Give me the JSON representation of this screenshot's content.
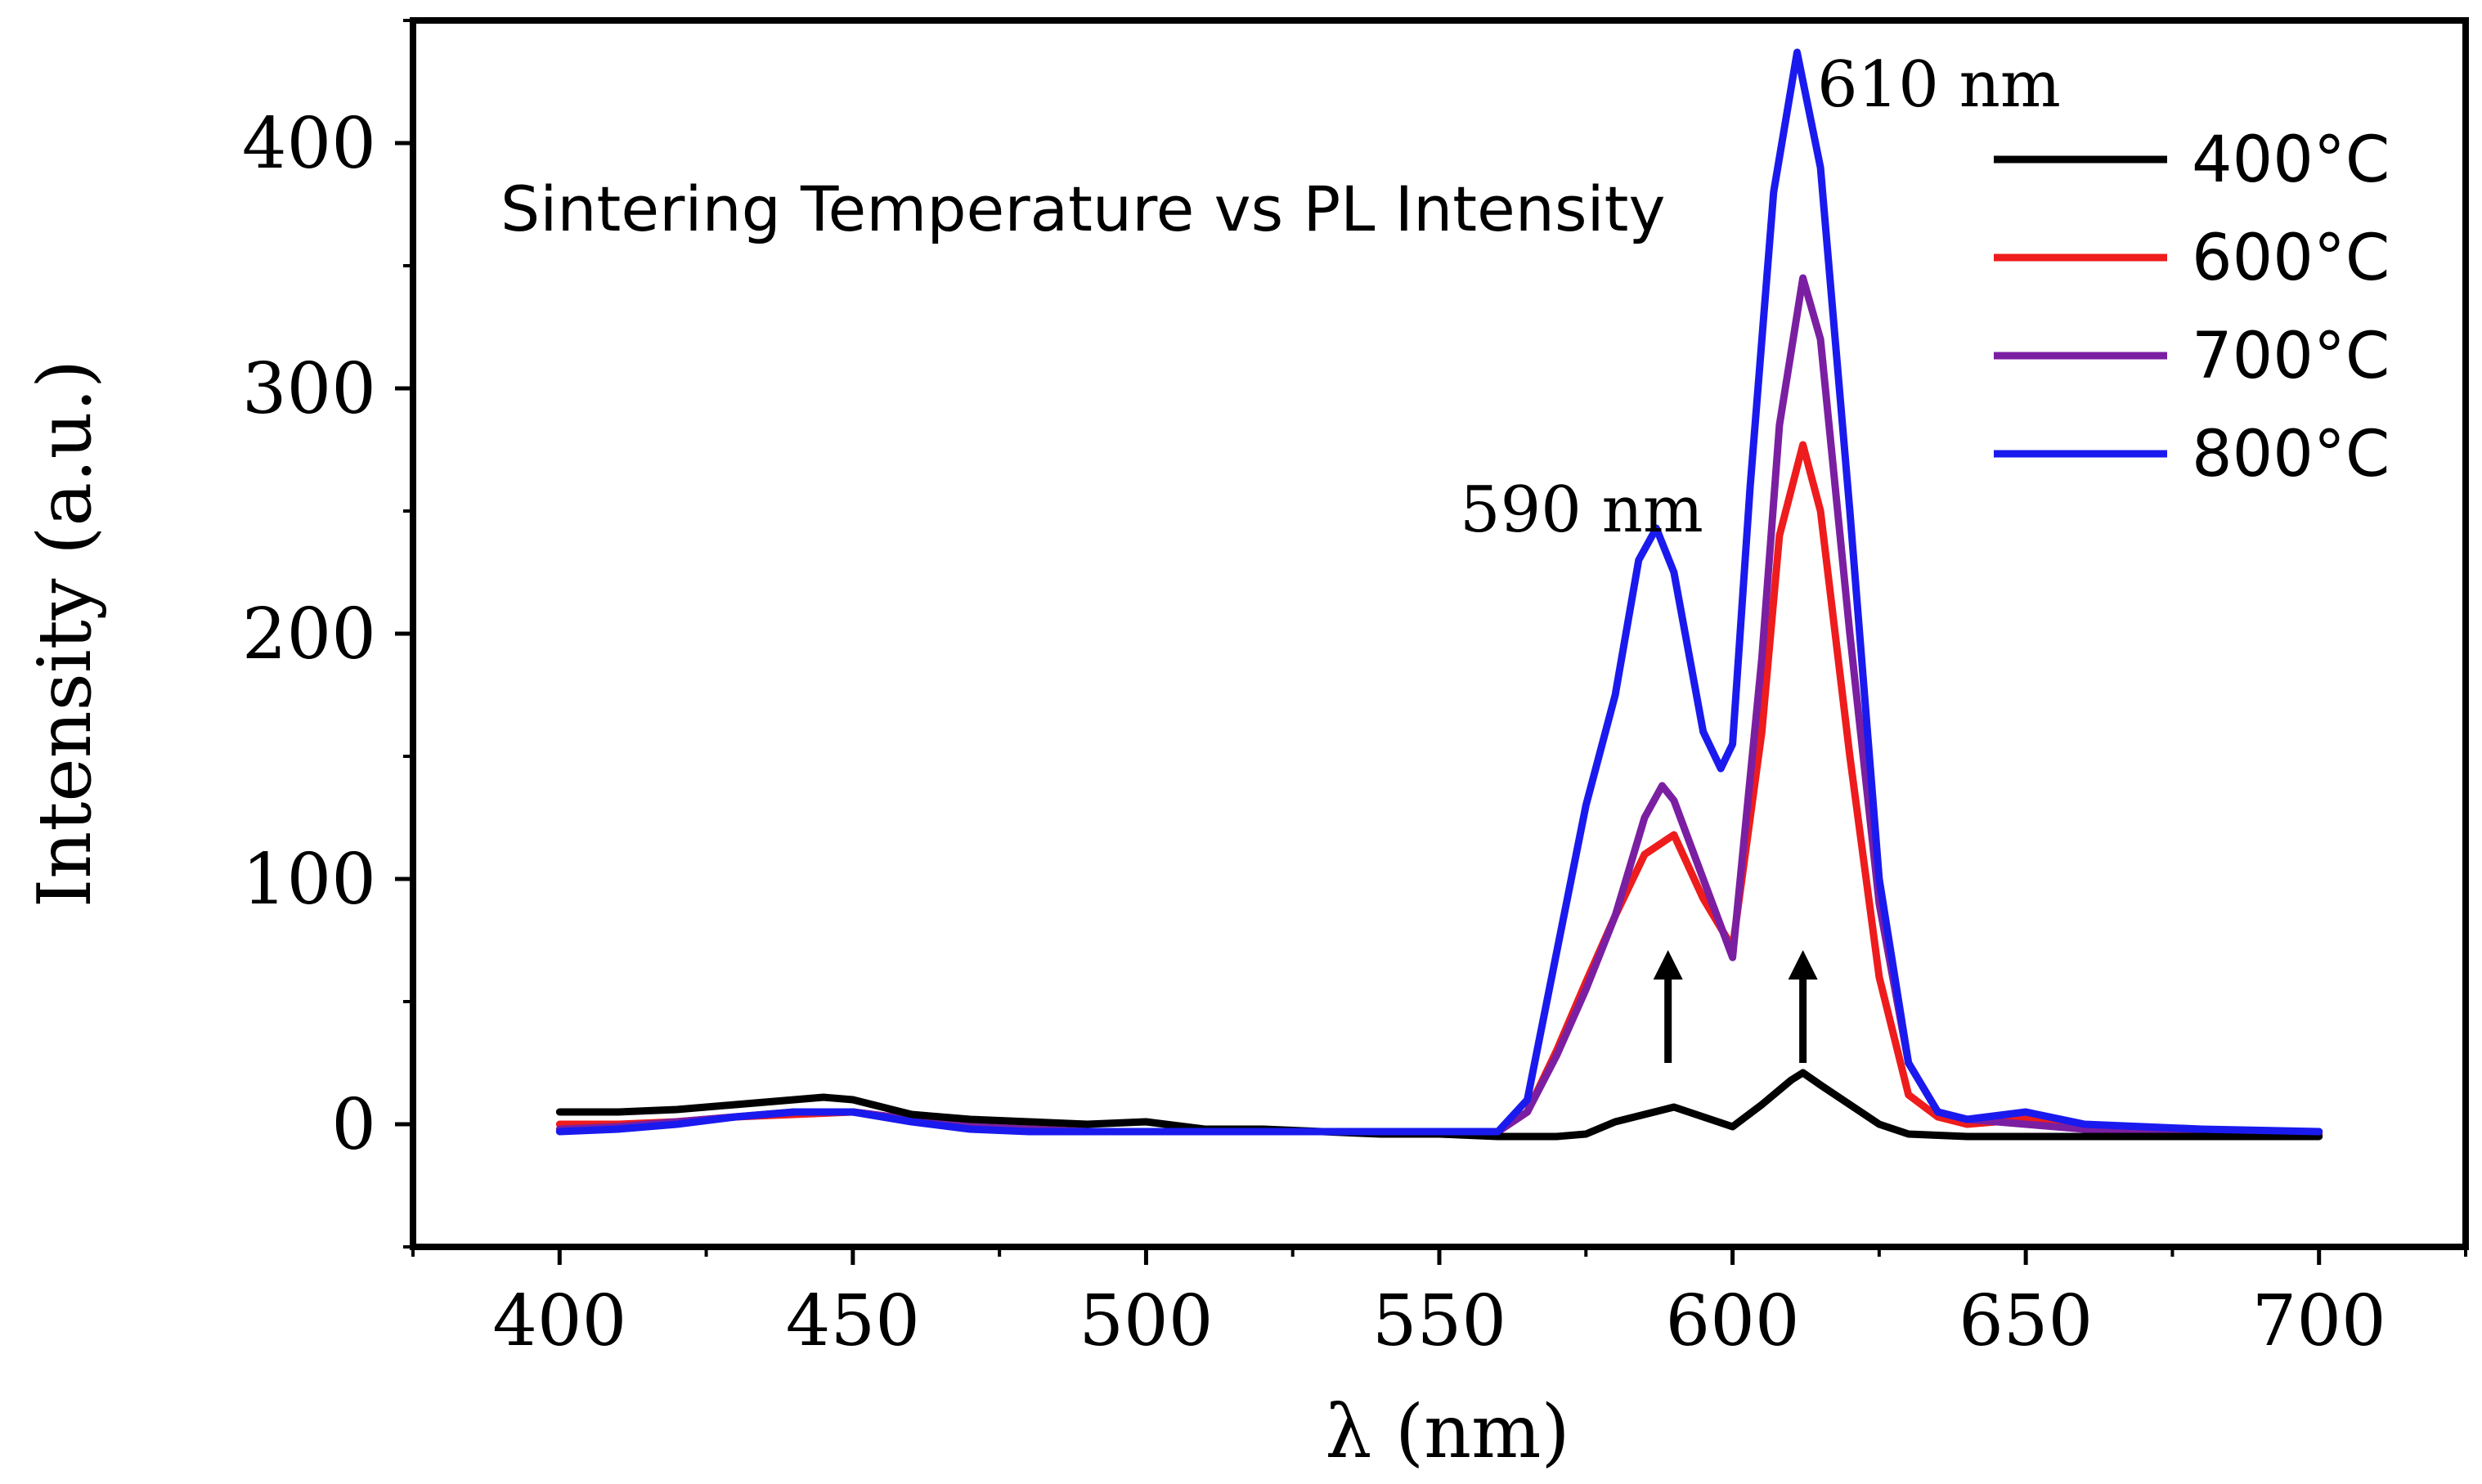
{
  "chart_data": {
    "type": "line",
    "title": "Sintering Temperature vs PL Intensity",
    "xlabel": "λ (nm)",
    "ylabel": "Intensity (a.u.)",
    "xlim": [
      375,
      725
    ],
    "ylim": [
      -50,
      450
    ],
    "xticks": [
      400,
      450,
      500,
      550,
      600,
      650,
      700
    ],
    "yticks": [
      0,
      100,
      200,
      300,
      400
    ],
    "legend_position": "top-right",
    "series": [
      {
        "name": "400°C",
        "color": "#000000",
        "x": [
          400,
          410,
          420,
          430,
          440,
          445,
          450,
          460,
          470,
          480,
          490,
          500,
          510,
          520,
          530,
          540,
          550,
          560,
          570,
          575,
          580,
          585,
          590,
          595,
          600,
          605,
          610,
          612,
          615,
          620,
          625,
          630,
          640,
          650,
          660,
          680,
          700
        ],
        "y": [
          5,
          5,
          6,
          8,
          10,
          11,
          10,
          4,
          2,
          1,
          0,
          1,
          -2,
          -2,
          -3,
          -4,
          -4,
          -5,
          -5,
          -4,
          1,
          4,
          7,
          3,
          -1,
          8,
          18,
          21,
          16,
          8,
          0,
          -4,
          -5,
          -5,
          -5,
          -5,
          -5
        ]
      },
      {
        "name": "600°C",
        "color": "#ee1c1c",
        "x": [
          400,
          410,
          420,
          430,
          440,
          450,
          460,
          470,
          480,
          490,
          500,
          510,
          520,
          530,
          540,
          550,
          560,
          565,
          570,
          575,
          580,
          585,
          590,
          595,
          600,
          605,
          608,
          612,
          615,
          620,
          625,
          630,
          635,
          640,
          650,
          660,
          680,
          700
        ],
        "y": [
          0,
          0,
          1,
          3,
          4,
          5,
          2,
          -1,
          -2,
          -3,
          -3,
          -3,
          -3,
          -3,
          -3,
          -3,
          -3,
          5,
          30,
          58,
          85,
          110,
          118,
          92,
          72,
          160,
          240,
          277,
          250,
          150,
          60,
          12,
          3,
          0,
          2,
          -2,
          -3,
          -4
        ]
      },
      {
        "name": "700°C",
        "color": "#7b1fa2",
        "x": [
          400,
          410,
          420,
          430,
          440,
          450,
          460,
          470,
          480,
          490,
          500,
          510,
          520,
          530,
          540,
          550,
          560,
          565,
          570,
          575,
          580,
          585,
          588,
          590,
          595,
          600,
          605,
          608,
          612,
          615,
          620,
          625,
          630,
          635,
          640,
          650,
          660,
          680,
          700
        ],
        "y": [
          -2,
          -1,
          1,
          3,
          5,
          5,
          2,
          -1,
          -2,
          -3,
          -3,
          -3,
          -3,
          -3,
          -3,
          -3,
          -3,
          5,
          28,
          55,
          85,
          125,
          138,
          132,
          100,
          68,
          190,
          285,
          345,
          320,
          200,
          90,
          25,
          5,
          2,
          0,
          -2,
          -3,
          -3
        ]
      },
      {
        "name": "800°C",
        "color": "#1a1aee",
        "x": [
          400,
          410,
          420,
          430,
          440,
          450,
          460,
          470,
          480,
          490,
          500,
          510,
          520,
          530,
          540,
          550,
          560,
          565,
          570,
          575,
          580,
          584,
          587,
          590,
          595,
          598,
          600,
          603,
          607,
          611,
          615,
          620,
          625,
          630,
          635,
          640,
          650,
          660,
          680,
          700
        ],
        "y": [
          -3,
          -2,
          0,
          3,
          5,
          5,
          1,
          -2,
          -3,
          -3,
          -3,
          -3,
          -3,
          -3,
          -3,
          -3,
          -3,
          10,
          70,
          130,
          175,
          230,
          243,
          225,
          160,
          145,
          155,
          260,
          380,
          437,
          390,
          250,
          100,
          25,
          5,
          2,
          5,
          0,
          -2,
          -3
        ]
      }
    ],
    "annotations": [
      {
        "text": "590 nm",
        "x": 590,
        "y": 245
      },
      {
        "text": "610 nm",
        "x": 610,
        "y": 440
      }
    ],
    "arrows": [
      {
        "x": 589,
        "y_from": 25,
        "y_to": 65
      },
      {
        "x": 612,
        "y_from": 25,
        "y_to": 65
      }
    ]
  }
}
